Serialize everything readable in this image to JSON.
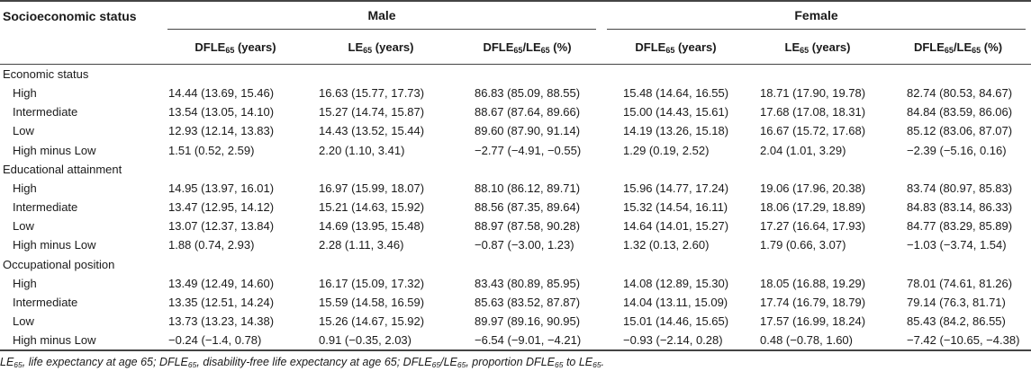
{
  "header": {
    "row_label_header": "Socioeconomic status",
    "group_male": "Male",
    "group_female": "Female",
    "col_dfle_base": "DFLE",
    "col_dfle_unit": " (years)",
    "col_le_base": "LE",
    "col_le_unit": " (years)",
    "col_ratio_a": "DFLE",
    "col_ratio_sep": "/LE",
    "col_ratio_unit": " (%)",
    "sub65": "65"
  },
  "sections": [
    {
      "title": "Economic status",
      "rows": [
        {
          "label": "High",
          "values": [
            "14.44 (13.69, 15.46)",
            "16.63 (15.77, 17.73)",
            "86.83 (85.09, 88.55)",
            "15.48 (14.64, 16.55)",
            "18.71 (17.90, 19.78)",
            "82.74 (80.53, 84.67)"
          ]
        },
        {
          "label": "Intermediate",
          "values": [
            "13.54 (13.05, 14.10)",
            "15.27 (14.74, 15.87)",
            "88.67 (87.64, 89.66)",
            "15.00 (14.43, 15.61)",
            "17.68 (17.08, 18.31)",
            "84.84 (83.59, 86.06)"
          ]
        },
        {
          "label": "Low",
          "values": [
            "12.93 (12.14, 13.83)",
            "14.43 (13.52, 15.44)",
            "89.60 (87.90, 91.14)",
            "14.19 (13.26, 15.18)",
            "16.67 (15.72, 17.68)",
            "85.12 (83.06, 87.07)"
          ]
        },
        {
          "label": "High minus Low",
          "values": [
            "1.51 (0.52, 2.59)",
            "2.20 (1.10, 3.41)",
            "−2.77 (−4.91, −0.55)",
            "1.29 (0.19, 2.52)",
            "2.04 (1.01, 3.29)",
            "−2.39 (−5.16, 0.16)"
          ]
        }
      ]
    },
    {
      "title": "Educational attainment",
      "rows": [
        {
          "label": "High",
          "values": [
            "14.95 (13.97, 16.01)",
            "16.97 (15.99, 18.07)",
            "88.10 (86.12, 89.71)",
            "15.96 (14.77, 17.24)",
            "19.06 (17.96, 20.38)",
            "83.74 (80.97, 85.83)"
          ]
        },
        {
          "label": "Intermediate",
          "values": [
            "13.47 (12.95, 14.12)",
            "15.21 (14.63, 15.92)",
            "88.56 (87.35, 89.64)",
            "15.32 (14.54, 16.11)",
            "18.06 (17.29, 18.89)",
            "84.83 (83.14, 86.33)"
          ]
        },
        {
          "label": "Low",
          "values": [
            "13.07 (12.37, 13.84)",
            "14.69 (13.95, 15.48)",
            "88.97 (87.58, 90.28)",
            "14.64 (14.01, 15.27)",
            "17.27 (16.64, 17.93)",
            "84.77 (83.29, 85.89)"
          ]
        },
        {
          "label": "High minus Low",
          "values": [
            "1.88 (0.74, 2.93)",
            "2.28 (1.11, 3.46)",
            "−0.87 (−3.00, 1.23)",
            "1.32 (0.13, 2.60)",
            "1.79 (0.66, 3.07)",
            "−1.03 (−3.74, 1.54)"
          ]
        }
      ]
    },
    {
      "title": "Occupational position",
      "rows": [
        {
          "label": "High",
          "values": [
            "13.49 (12.49, 14.60)",
            "16.17 (15.09, 17.32)",
            "83.43 (80.89, 85.95)",
            "14.08 (12.89, 15.30)",
            "18.05 (16.88, 19.29)",
            "78.01 (74.61, 81.26)"
          ]
        },
        {
          "label": "Intermediate",
          "values": [
            "13.35 (12.51, 14.24)",
            "15.59 (14.58, 16.59)",
            "85.63 (83.52, 87.87)",
            "14.04 (13.11, 15.09)",
            "17.74 (16.79, 18.79)",
            "79.14 (76.3, 81.71)"
          ]
        },
        {
          "label": "Low",
          "values": [
            "13.73 (13.23, 14.38)",
            "15.26 (14.67, 15.92)",
            "89.97 (89.16, 90.95)",
            "15.01 (14.46, 15.65)",
            "17.57 (16.99, 18.24)",
            "85.43 (84.2, 86.55)"
          ]
        },
        {
          "label": "High minus Low",
          "values": [
            "−0.24 (−1.4, 0.78)",
            "0.91 (−0.35, 2.03)",
            "−6.54 (−9.01, −4.21)",
            "−0.93 (−2.14, 0.28)",
            "0.48 (−0.78, 1.60)",
            "−7.42 (−10.65, −4.38)"
          ]
        }
      ]
    }
  ],
  "footnote": {
    "p1": "LE",
    "p2": ", life expectancy at age 65; DFLE",
    "p3": ", disability-free life expectancy at age 65; DFLE",
    "p4": "/LE",
    "p5": ", proportion DFLE",
    "p6": " to LE",
    "p7": "."
  }
}
